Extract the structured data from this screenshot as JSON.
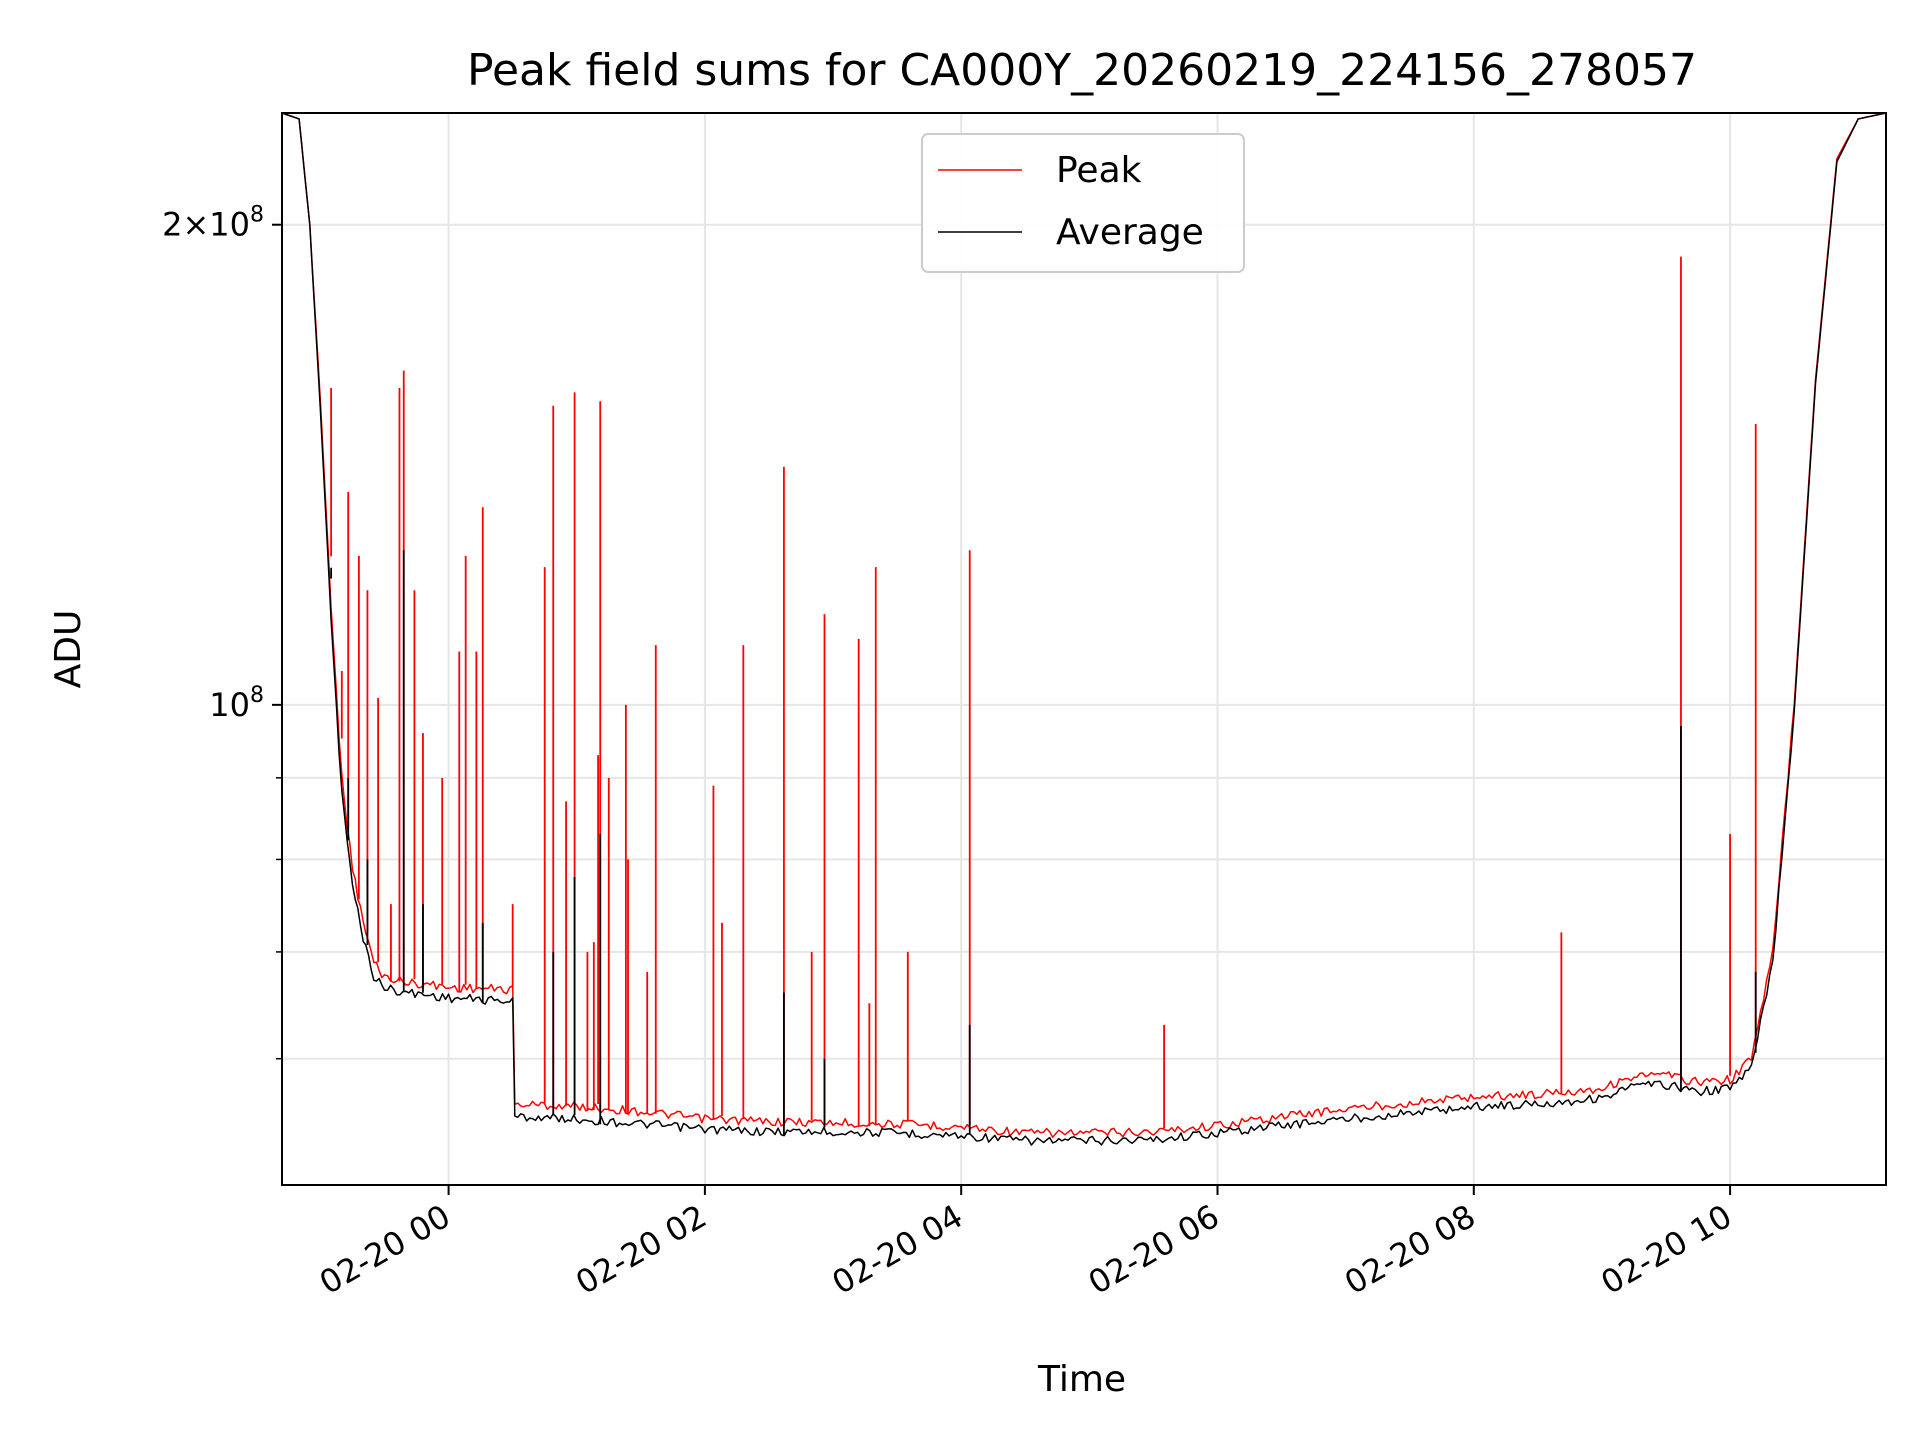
{
  "chart_data": {
    "type": "line",
    "title": "Peak field sums for CA000Y_20260219_224156_278057",
    "xlabel": "Time",
    "ylabel": "ADU",
    "yscale": "log",
    "ylim": [
      50000000,
      235000000
    ],
    "xlim": [
      "2026-02-19 22:42",
      "2026-02-20 11:13"
    ],
    "x_ticks": [
      "02-20 00",
      "02-20 02",
      "02-20 04",
      "02-20 06",
      "02-20 08",
      "02-20 10"
    ],
    "x_tick_times": [
      "2026-02-20 00:00",
      "2026-02-20 02:00",
      "2026-02-20 04:00",
      "2026-02-20 06:00",
      "2026-02-20 08:00",
      "2026-02-20 10:00"
    ],
    "y_major_ticks": [
      100000000,
      200000000
    ],
    "y_major_labels": [
      {
        "mant": "",
        "exp": "8"
      },
      {
        "mant": "2×",
        "exp": "8"
      }
    ],
    "y_minor_ticks": [
      60000000,
      70000000,
      80000000,
      90000000
    ],
    "grid": true,
    "legend_position": "top-center",
    "colors": {
      "peak": "#ff0000",
      "average": "#000000"
    },
    "series": [
      {
        "name": "Peak",
        "color": "#ff0000",
        "baseline": [
          [
            "2026-02-19 22:42",
            235000000
          ],
          [
            "2026-02-19 22:50",
            233000000
          ],
          [
            "2026-02-19 22:55",
            200000000
          ],
          [
            "2026-02-19 23:00",
            155000000
          ],
          [
            "2026-02-19 23:05",
            115000000
          ],
          [
            "2026-02-19 23:10",
            90000000
          ],
          [
            "2026-02-19 23:15",
            79000000
          ],
          [
            "2026-02-19 23:20",
            73000000
          ],
          [
            "2026-02-19 23:25",
            69000000
          ],
          [
            "2026-02-19 23:30",
            67500000
          ],
          [
            "2026-02-19 23:40",
            67000000
          ],
          [
            "2026-02-19 23:50",
            66800000
          ],
          [
            "2026-02-20 00:00",
            66500000
          ],
          [
            "2026-02-20 00:30",
            66300000
          ],
          [
            "2026-02-20 00:31",
            56200000
          ],
          [
            "2026-02-20 01:00",
            56000000
          ],
          [
            "2026-02-20 01:30",
            55600000
          ],
          [
            "2026-02-20 02:00",
            55000000
          ],
          [
            "2026-02-20 02:30",
            54800000
          ],
          [
            "2026-02-20 03:00",
            54700000
          ],
          [
            "2026-02-20 03:30",
            54600000
          ],
          [
            "2026-02-20 04:00",
            54400000
          ],
          [
            "2026-02-20 04:30",
            53900000
          ],
          [
            "2026-02-20 05:00",
            53900000
          ],
          [
            "2026-02-20 05:30",
            54000000
          ],
          [
            "2026-02-20 06:00",
            54500000
          ],
          [
            "2026-02-20 06:30",
            55200000
          ],
          [
            "2026-02-20 07:00",
            55800000
          ],
          [
            "2026-02-20 07:30",
            56300000
          ],
          [
            "2026-02-20 08:00",
            56800000
          ],
          [
            "2026-02-20 08:30",
            57000000
          ],
          [
            "2026-02-20 09:00",
            57500000
          ],
          [
            "2026-02-20 09:15",
            58500000
          ],
          [
            "2026-02-20 09:30",
            58600000
          ],
          [
            "2026-02-20 09:45",
            58000000
          ],
          [
            "2026-02-20 10:00",
            58200000
          ],
          [
            "2026-02-20 10:10",
            60000000
          ],
          [
            "2026-02-20 10:20",
            70000000
          ],
          [
            "2026-02-20 10:30",
            100000000
          ],
          [
            "2026-02-20 10:40",
            160000000
          ],
          [
            "2026-02-20 10:50",
            220000000
          ],
          [
            "2026-02-20 11:00",
            233000000
          ],
          [
            "2026-02-20 11:13",
            235000000
          ]
        ],
        "spikes": [
          [
            "2026-02-19 23:05",
            158000000
          ],
          [
            "2026-02-19 23:10",
            105000000
          ],
          [
            "2026-02-19 23:13",
            136000000
          ],
          [
            "2026-02-19 23:18",
            124000000
          ],
          [
            "2026-02-19 23:22",
            118000000
          ],
          [
            "2026-02-19 23:27",
            101000000
          ],
          [
            "2026-02-19 23:33",
            75000000
          ],
          [
            "2026-02-19 23:37",
            158000000
          ],
          [
            "2026-02-19 23:39",
            162000000
          ],
          [
            "2026-02-19 23:44",
            118000000
          ],
          [
            "2026-02-19 23:48",
            96000000
          ],
          [
            "2026-02-19 23:57",
            90000000
          ],
          [
            "2026-02-20 00:05",
            108000000
          ],
          [
            "2026-02-20 00:08",
            124000000
          ],
          [
            "2026-02-20 00:13",
            108000000
          ],
          [
            "2026-02-20 00:16",
            133000000
          ],
          [
            "2026-02-20 00:30",
            75000000
          ],
          [
            "2026-02-20 00:45",
            122000000
          ],
          [
            "2026-02-20 00:49",
            154000000
          ],
          [
            "2026-02-20 00:55",
            87000000
          ],
          [
            "2026-02-20 00:59",
            157000000
          ],
          [
            "2026-02-20 01:05",
            70000000
          ],
          [
            "2026-02-20 01:08",
            71000000
          ],
          [
            "2026-02-20 01:10",
            93000000
          ],
          [
            "2026-02-20 01:11",
            155000000
          ],
          [
            "2026-02-20 01:15",
            90000000
          ],
          [
            "2026-02-20 01:23",
            100000000
          ],
          [
            "2026-02-20 01:24",
            80000000
          ],
          [
            "2026-02-20 01:33",
            68000000
          ],
          [
            "2026-02-20 01:37",
            109000000
          ],
          [
            "2026-02-20 02:04",
            89000000
          ],
          [
            "2026-02-20 02:08",
            73000000
          ],
          [
            "2026-02-20 02:18",
            109000000
          ],
          [
            "2026-02-20 02:37",
            141000000
          ],
          [
            "2026-02-20 02:50",
            70000000
          ],
          [
            "2026-02-20 02:56",
            114000000
          ],
          [
            "2026-02-20 03:12",
            110000000
          ],
          [
            "2026-02-20 03:17",
            65000000
          ],
          [
            "2026-02-20 03:20",
            122000000
          ],
          [
            "2026-02-20 03:35",
            70000000
          ],
          [
            "2026-02-20 04:04",
            125000000
          ],
          [
            "2026-02-20 05:35",
            63000000
          ],
          [
            "2026-02-20 08:41",
            72000000
          ],
          [
            "2026-02-20 09:37",
            191000000
          ],
          [
            "2026-02-20 10:00",
            83000000
          ],
          [
            "2026-02-20 10:12",
            150000000
          ]
        ]
      },
      {
        "name": "Average",
        "color": "#000000",
        "baseline": [
          [
            "2026-02-19 22:42",
            235000000
          ],
          [
            "2026-02-19 22:50",
            233000000
          ],
          [
            "2026-02-19 22:55",
            200000000
          ],
          [
            "2026-02-19 23:00",
            153000000
          ],
          [
            "2026-02-19 23:05",
            113000000
          ],
          [
            "2026-02-19 23:10",
            88000000
          ],
          [
            "2026-02-19 23:15",
            77000000
          ],
          [
            "2026-02-19 23:20",
            71500000
          ],
          [
            "2026-02-19 23:25",
            67500000
          ],
          [
            "2026-02-19 23:30",
            66500000
          ],
          [
            "2026-02-19 23:40",
            66000000
          ],
          [
            "2026-02-19 23:50",
            65800000
          ],
          [
            "2026-02-20 00:00",
            65500000
          ],
          [
            "2026-02-20 00:30",
            65200000
          ],
          [
            "2026-02-20 00:31",
            55200000
          ],
          [
            "2026-02-20 01:00",
            55000000
          ],
          [
            "2026-02-20 01:30",
            54600000
          ],
          [
            "2026-02-20 02:00",
            54200000
          ],
          [
            "2026-02-20 02:30",
            54000000
          ],
          [
            "2026-02-20 03:00",
            54000000
          ],
          [
            "2026-02-20 03:30",
            53900000
          ],
          [
            "2026-02-20 04:00",
            53700000
          ],
          [
            "2026-02-20 04:30",
            53300000
          ],
          [
            "2026-02-20 05:00",
            53300000
          ],
          [
            "2026-02-20 05:30",
            53400000
          ],
          [
            "2026-02-20 06:00",
            53900000
          ],
          [
            "2026-02-20 06:30",
            54500000
          ],
          [
            "2026-02-20 07:00",
            55000000
          ],
          [
            "2026-02-20 07:30",
            55500000
          ],
          [
            "2026-02-20 08:00",
            56000000
          ],
          [
            "2026-02-20 08:30",
            56200000
          ],
          [
            "2026-02-20 09:00",
            56700000
          ],
          [
            "2026-02-20 09:15",
            57700000
          ],
          [
            "2026-02-20 09:30",
            57800000
          ],
          [
            "2026-02-20 09:45",
            57200000
          ],
          [
            "2026-02-20 10:00",
            57500000
          ],
          [
            "2026-02-20 10:10",
            59200000
          ],
          [
            "2026-02-20 10:20",
            69000000
          ],
          [
            "2026-02-20 10:30",
            99000000
          ],
          [
            "2026-02-20 10:40",
            159000000
          ],
          [
            "2026-02-20 10:50",
            219000000
          ],
          [
            "2026-02-20 11:00",
            233000000
          ],
          [
            "2026-02-20 11:13",
            235000000
          ]
        ],
        "spikes": [
          [
            "2026-02-19 23:05",
            120000000
          ],
          [
            "2026-02-19 23:13",
            90000000
          ],
          [
            "2026-02-19 23:22",
            80000000
          ],
          [
            "2026-02-19 23:39",
            125000000
          ],
          [
            "2026-02-19 23:48",
            75000000
          ],
          [
            "2026-02-20 00:16",
            73000000
          ],
          [
            "2026-02-20 00:49",
            70000000
          ],
          [
            "2026-02-20 00:59",
            78000000
          ],
          [
            "2026-02-20 01:11",
            83000000
          ],
          [
            "2026-02-20 02:37",
            66000000
          ],
          [
            "2026-02-20 02:56",
            60000000
          ],
          [
            "2026-02-20 04:04",
            63000000
          ],
          [
            "2026-02-20 09:37",
            97000000
          ],
          [
            "2026-02-20 10:12",
            68000000
          ]
        ]
      }
    ]
  }
}
